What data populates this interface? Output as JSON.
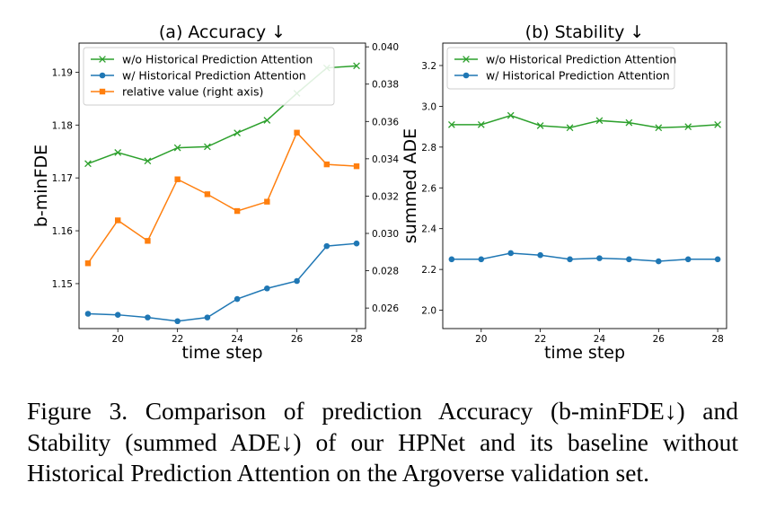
{
  "chart_data": [
    {
      "type": "line",
      "title": "(a) Accuracy ↓",
      "xlabel": "time step",
      "ylabel": "b-minFDE",
      "x": [
        19,
        20,
        21,
        22,
        23,
        24,
        25,
        26,
        27,
        28
      ],
      "xticks": [
        "20",
        "22",
        "24",
        "26",
        "28"
      ],
      "xlim": [
        18.7,
        28.3
      ],
      "ylim": [
        1.1415,
        1.1955
      ],
      "yticks": [
        "1.15",
        "1.16",
        "1.17",
        "1.18",
        "1.19"
      ],
      "ylim_right": [
        0.0249,
        0.0402
      ],
      "yticks_right": [
        "0.026",
        "0.028",
        "0.030",
        "0.032",
        "0.034",
        "0.036",
        "0.038",
        "0.040"
      ],
      "legend_position": "top-left",
      "series": [
        {
          "name": "w/o Historical Prediction Attention",
          "axis": "left",
          "color": "#2ca02c",
          "marker": "x",
          "values": [
            1.1727,
            1.1748,
            1.1732,
            1.1757,
            1.1759,
            1.1785,
            1.1809,
            1.186,
            1.1908,
            1.1912
          ]
        },
        {
          "name": "w/ Historical Prediction Attention",
          "axis": "left",
          "color": "#1f77b4",
          "marker": "o",
          "values": [
            1.1443,
            1.1441,
            1.1436,
            1.1429,
            1.1436,
            1.1471,
            1.1491,
            1.1505,
            1.1571,
            1.1576
          ]
        },
        {
          "name": "relative value (right axis)",
          "axis": "right",
          "color": "#ff7f0e",
          "marker": "s",
          "values": [
            0.0284,
            0.0307,
            0.0296,
            0.0329,
            0.0321,
            0.0312,
            0.0317,
            0.0354,
            0.0337,
            0.0336
          ]
        }
      ]
    },
    {
      "type": "line",
      "title": "(b) Stability ↓",
      "xlabel": "time step",
      "ylabel": "summed ADE",
      "x": [
        19,
        20,
        21,
        22,
        23,
        24,
        25,
        26,
        27,
        28
      ],
      "xticks": [
        "20",
        "22",
        "24",
        "26",
        "28"
      ],
      "xlim": [
        18.7,
        28.3
      ],
      "ylim": [
        1.91,
        3.31
      ],
      "yticks": [
        "2.0",
        "2.2",
        "2.4",
        "2.6",
        "2.8",
        "3.0",
        "3.2"
      ],
      "legend_position": "top-left",
      "series": [
        {
          "name": "w/o Historical Prediction Attention",
          "color": "#2ca02c",
          "marker": "x",
          "values": [
            2.91,
            2.91,
            2.955,
            2.905,
            2.895,
            2.93,
            2.92,
            2.895,
            2.9,
            2.91
          ]
        },
        {
          "name": "w/ Historical Prediction Attention",
          "color": "#1f77b4",
          "marker": "o",
          "values": [
            2.25,
            2.25,
            2.28,
            2.27,
            2.25,
            2.255,
            2.25,
            2.24,
            2.25,
            2.25
          ]
        }
      ]
    }
  ],
  "caption": "Figure 3.  Comparison of prediction Accuracy (b-minFDE↓) and Stability (summed ADE↓) of our HPNet and its baseline without Historical Prediction Attention on the Argoverse validation set."
}
